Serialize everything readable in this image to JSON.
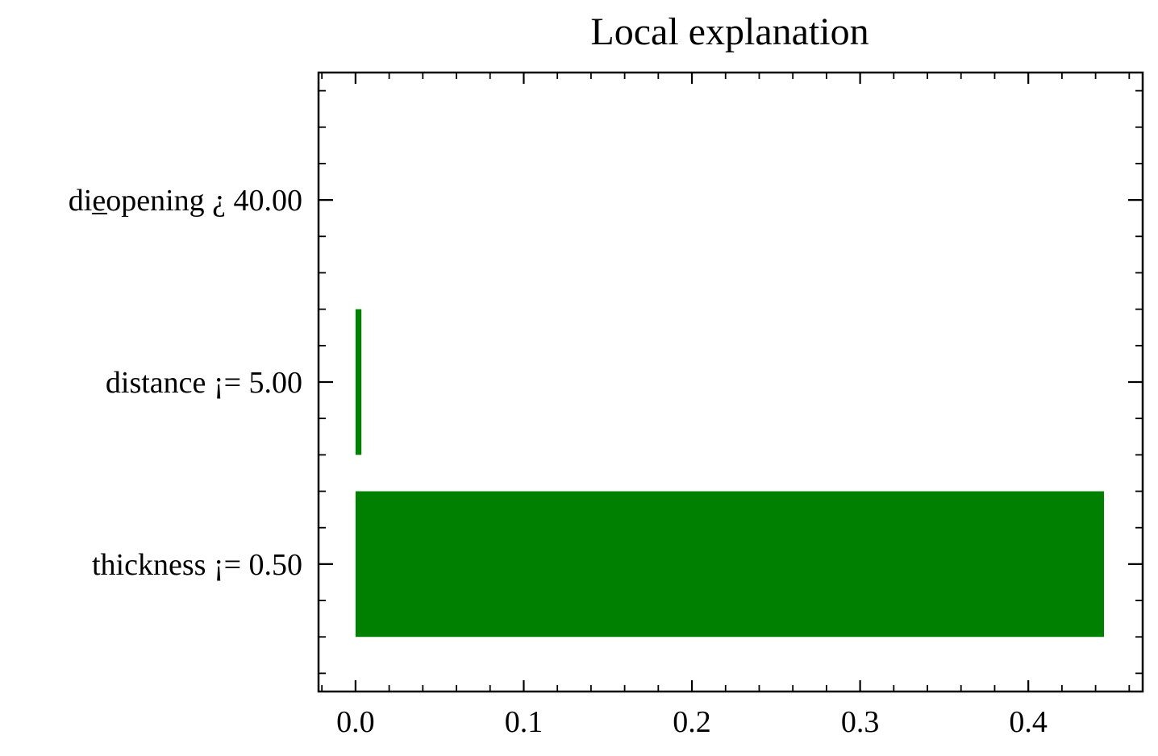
{
  "chart_data": {
    "type": "bar",
    "orientation": "horizontal",
    "title": "Local explanation",
    "xlabel": "",
    "ylabel": "",
    "categories": [
      "thickness ¡= 0.50",
      "distance ¡= 5.00",
      "die_opening ¿ 40.00"
    ],
    "category_labels": [
      "thickness ¡= 0.50",
      "distance ¡= 5.00",
      "die̲opening ¿ 40.00"
    ],
    "values": [
      0.445,
      0.0035,
      0.0
    ],
    "xlim": [
      -0.022,
      0.468
    ],
    "x_ticks": [
      0.0,
      0.1,
      0.2,
      0.3,
      0.4
    ],
    "x_tick_labels": [
      "0.0",
      "0.1",
      "0.2",
      "0.3",
      "0.4"
    ],
    "x_minor_step": 0.02,
    "bar_color": "#008000",
    "grid": false,
    "legend": "none"
  }
}
